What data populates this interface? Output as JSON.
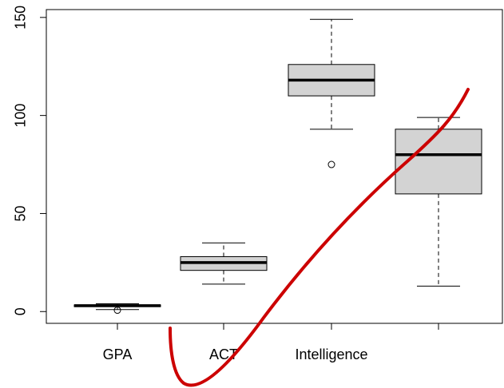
{
  "chart_data": {
    "type": "box",
    "title": "",
    "xlabel": "",
    "ylabel": "",
    "ylim": [
      -6,
      154
    ],
    "yticks": [
      0,
      50,
      100,
      150
    ],
    "box_fill": "#d3d3d3",
    "categories": [
      "GPA",
      "ACT",
      "Intelligence",
      ""
    ],
    "boxes": [
      {
        "label": "GPA",
        "whisker_low": 1.0,
        "q1": 2.5,
        "median": 3.0,
        "q3": 3.4,
        "whisker_high": 4.0,
        "outliers": [
          0.7
        ]
      },
      {
        "label": "ACT",
        "whisker_low": 14,
        "q1": 21,
        "median": 25,
        "q3": 28,
        "whisker_high": 35,
        "outliers": []
      },
      {
        "label": "Intelligence",
        "whisker_low": 93,
        "q1": 110,
        "median": 118,
        "q3": 126,
        "whisker_high": 149,
        "outliers": [
          75
        ]
      },
      {
        "label": "",
        "whisker_low": 13,
        "q1": 60,
        "median": 80,
        "q3": 93,
        "whisker_high": 99,
        "outliers": []
      }
    ]
  },
  "annotation": {
    "color": "#cc0000",
    "description_name": "hand-drawn-red-curve"
  }
}
